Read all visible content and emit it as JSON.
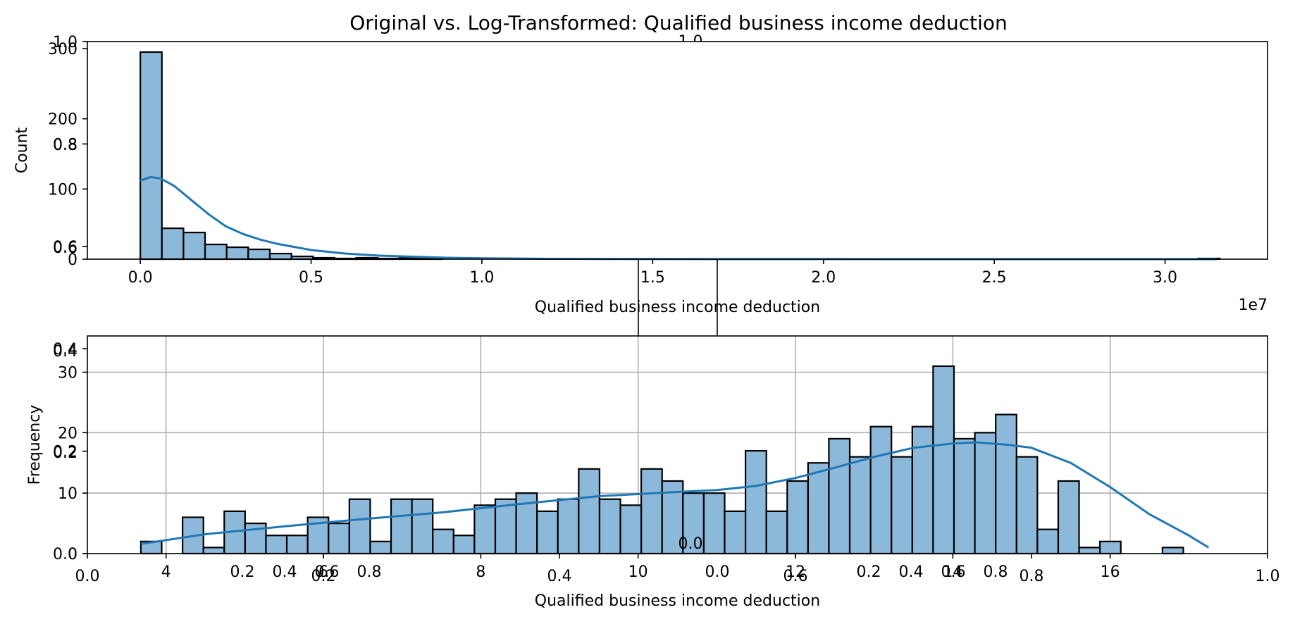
{
  "figure_title": "Original vs. Log-Transformed: Qualified business income deduction",
  "background_axes": {
    "ticks": [
      "0.0",
      "0.2",
      "0.4",
      "0.6",
      "0.8",
      "1.0"
    ]
  },
  "chart_data": [
    {
      "type": "bar",
      "name": "original",
      "xlabel": "Qualified business income deduction",
      "ylabel": "Count",
      "offset_text": "1e7",
      "xlim": [
        -0.155,
        3.3
      ],
      "ylim": [
        0,
        310
      ],
      "xticks": [
        0.0,
        0.5,
        1.0,
        1.5,
        2.0,
        2.5,
        3.0
      ],
      "xtick_labels": [
        "0.0",
        "0.5",
        "1.0",
        "1.5",
        "2.0",
        "2.5",
        "3.0"
      ],
      "yticks": [
        0,
        100,
        200,
        300
      ],
      "ytick_labels": [
        "0",
        "100",
        "200",
        "300"
      ],
      "bin_start": 0.0,
      "bin_width": 0.0632,
      "counts": [
        295,
        44,
        38,
        21,
        17,
        14,
        8,
        4,
        2,
        1,
        2,
        1,
        2,
        2,
        0,
        0,
        0,
        0,
        0,
        0,
        0,
        0,
        0,
        0,
        0,
        0,
        0,
        0,
        0,
        0,
        0,
        0,
        0,
        0,
        0,
        0,
        0,
        0,
        0,
        0,
        0,
        0,
        0,
        0,
        0,
        0,
        0,
        0,
        0,
        1
      ],
      "kde": {
        "x": [
          0.0,
          0.03,
          0.06,
          0.1,
          0.15,
          0.2,
          0.25,
          0.3,
          0.35,
          0.4,
          0.5,
          0.6,
          0.7,
          0.8,
          0.9,
          1.0,
          1.2,
          1.5,
          2.0,
          2.5,
          3.0,
          3.15
        ],
        "y": [
          112,
          117,
          115,
          104,
          84,
          64,
          47,
          36,
          28,
          22,
          13,
          8,
          5,
          3.5,
          2,
          1.2,
          0.5,
          0.2,
          0.1,
          0.05,
          0.02,
          0.01
        ]
      },
      "grid": false
    },
    {
      "type": "bar",
      "name": "log_transformed",
      "xlabel": "Qualified business income deduction",
      "ylabel": "Frequency",
      "xlim": [
        3.0,
        18.0
      ],
      "ylim": [
        0,
        36
      ],
      "xticks": [
        4,
        6,
        8,
        10,
        12,
        14,
        16
      ],
      "xtick_labels": [
        "4",
        "6",
        "8",
        "10",
        "12",
        "14",
        "16"
      ],
      "yticks": [
        0,
        10,
        20,
        30
      ],
      "ytick_labels": [
        "0",
        "10",
        "20",
        "30"
      ],
      "bin_start": 3.68,
      "bin_width": 0.265,
      "counts": [
        2,
        0,
        6,
        1,
        7,
        5,
        3,
        3,
        6,
        5,
        9,
        2,
        9,
        9,
        4,
        3,
        8,
        9,
        10,
        7,
        9,
        14,
        9,
        8,
        14,
        12,
        10,
        10,
        7,
        17,
        7,
        12,
        15,
        19,
        16,
        21,
        16,
        21,
        31,
        19,
        20,
        23,
        16,
        4,
        12,
        1,
        2,
        0,
        0,
        1
      ],
      "kde": {
        "x": [
          3.68,
          4.5,
          5.5,
          6.5,
          7.5,
          8.5,
          9.5,
          10.5,
          11.0,
          11.5,
          12.0,
          12.5,
          13.0,
          13.5,
          14.0,
          14.3,
          14.7,
          15.0,
          15.5,
          16.0,
          16.5,
          17.0,
          17.25
        ],
        "y": [
          1.6,
          3.2,
          4.5,
          5.7,
          6.8,
          8.2,
          9.5,
          10.2,
          10.5,
          11.2,
          12.5,
          14.2,
          16.0,
          17.5,
          18.2,
          18.4,
          18.0,
          17.5,
          15.0,
          11.0,
          6.5,
          3.0,
          1.0
        ]
      },
      "grid": true
    }
  ]
}
